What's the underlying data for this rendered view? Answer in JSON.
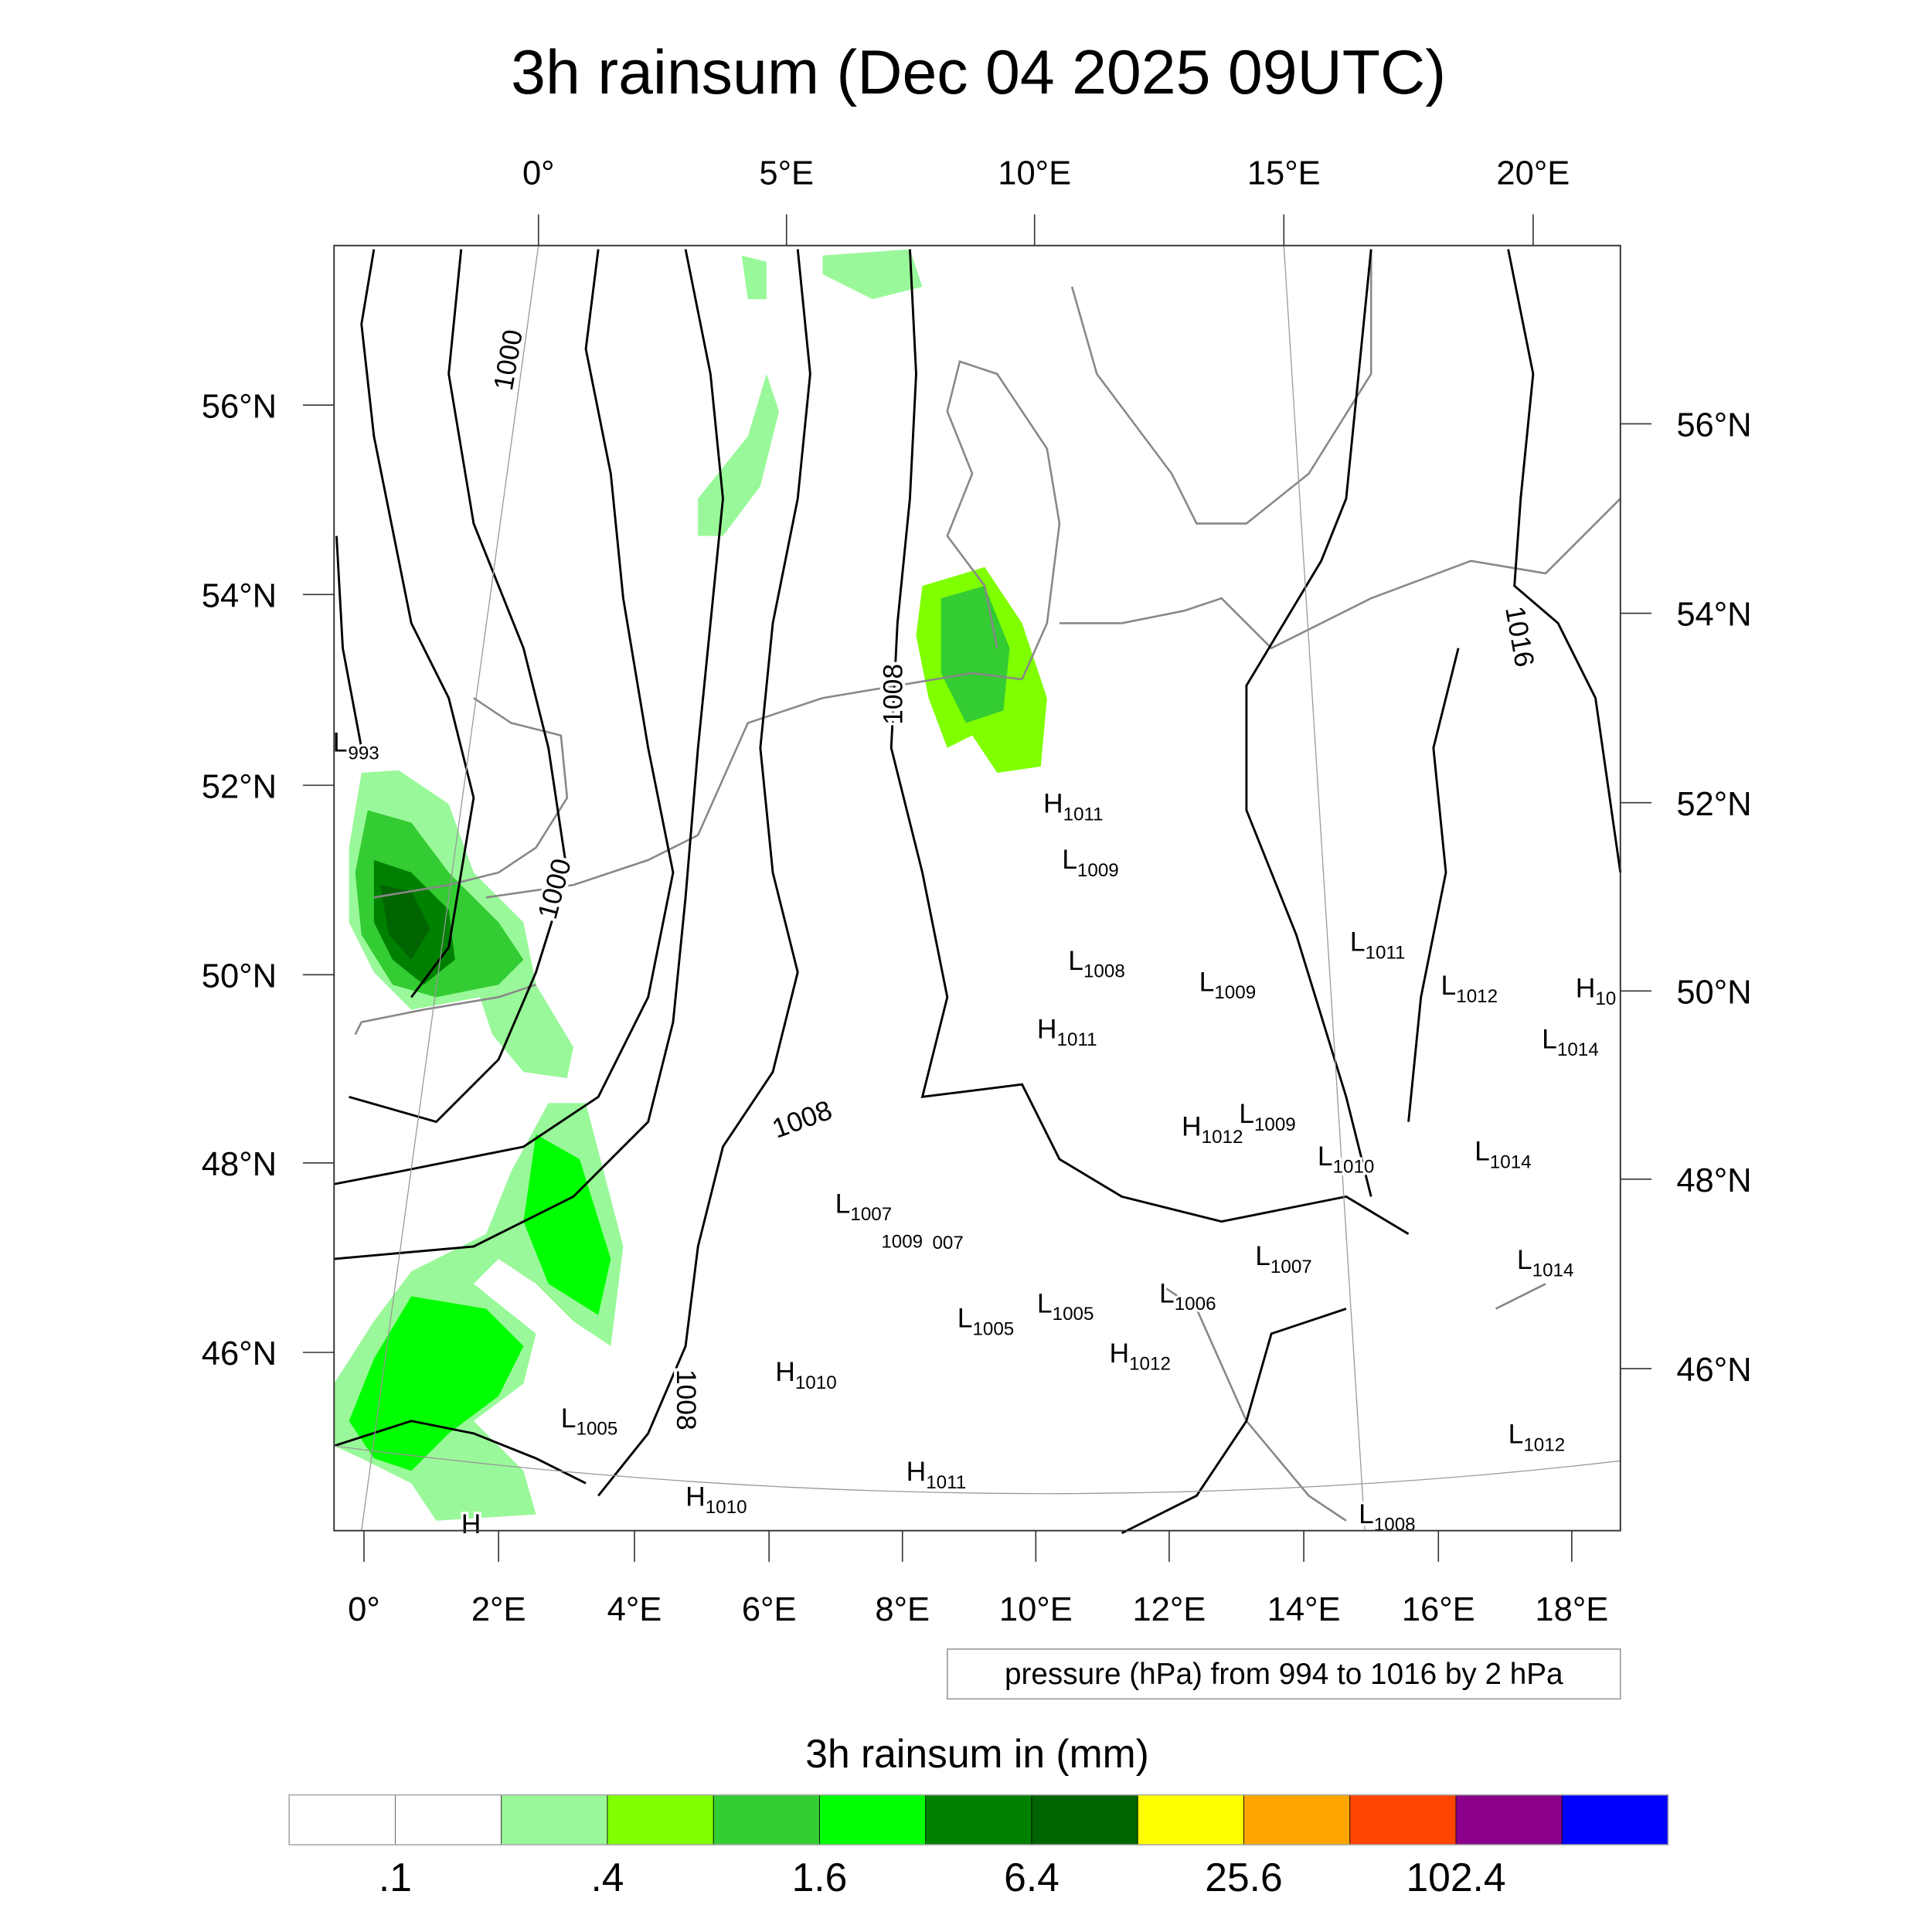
{
  "title": "3h rainsum (Dec 04 2025 09UTC)",
  "top_axis": [
    "0°",
    "5°E",
    "10°E",
    "15°E",
    "20°E"
  ],
  "left_axis": [
    "56°N",
    "54°N",
    "52°N",
    "50°N",
    "48°N",
    "46°N"
  ],
  "right_axis": [
    "56°N",
    "54°N",
    "52°N",
    "50°N",
    "48°N",
    "46°N"
  ],
  "bottom_axis": [
    "0°",
    "2°E",
    "4°E",
    "6°E",
    "8°E",
    "10°E",
    "12°E",
    "14°E",
    "16°E",
    "18°E"
  ],
  "contour_info": "pressure (hPa) from 994 to 1016 by 2 hPa",
  "contour_labels": [
    "1000",
    "1000",
    "1008",
    "1008",
    "1008",
    "1016"
  ],
  "pressure_centers": [
    {
      "t": "L",
      "v": "993"
    },
    {
      "t": "H",
      "v": "1011"
    },
    {
      "t": "L",
      "v": "1009"
    },
    {
      "t": "L",
      "v": "1011"
    },
    {
      "t": "L",
      "v": "1012"
    },
    {
      "t": "H",
      "v": "10"
    },
    {
      "t": "L",
      "v": "1008"
    },
    {
      "t": "L",
      "v": "1009"
    },
    {
      "t": "L",
      "v": "1014"
    },
    {
      "t": "H",
      "v": "1011"
    },
    {
      "t": "H",
      "v": "1012"
    },
    {
      "t": "L",
      "v": "1009"
    },
    {
      "t": "L",
      "v": "1010"
    },
    {
      "t": "L",
      "v": "1014"
    },
    {
      "t": "L",
      "v": "1007"
    },
    {
      "t": "",
      "v": "1009"
    },
    {
      "t": "",
      "v": "007"
    },
    {
      "t": "L",
      "v": "1014"
    },
    {
      "t": "L",
      "v": "1007"
    },
    {
      "t": "L",
      "v": "1006"
    },
    {
      "t": "L",
      "v": "1005"
    },
    {
      "t": "L",
      "v": "1005"
    },
    {
      "t": "H",
      "v": "1012"
    },
    {
      "t": "H",
      "v": "1010"
    },
    {
      "t": "L",
      "v": "1005"
    },
    {
      "t": "L",
      "v": "1012"
    },
    {
      "t": "H",
      "v": "1011"
    },
    {
      "t": "H",
      "v": "1010"
    },
    {
      "t": "L",
      "v": "1008"
    },
    {
      "t": "H",
      "v": ""
    }
  ],
  "legend": {
    "title": "3h rainsum in (mm)",
    "colors": [
      "#ffffff",
      "#ffffff",
      "#99f899",
      "#80ff00",
      "#33cc33",
      "#00ff00",
      "#008000",
      "#006400",
      "#ffff00",
      "#ffa500",
      "#ff4500",
      "#8b008b",
      "#0000ff"
    ],
    "labels": [
      ".1",
      ".4",
      "1.6",
      "6.4",
      "25.6",
      "102.4"
    ]
  }
}
